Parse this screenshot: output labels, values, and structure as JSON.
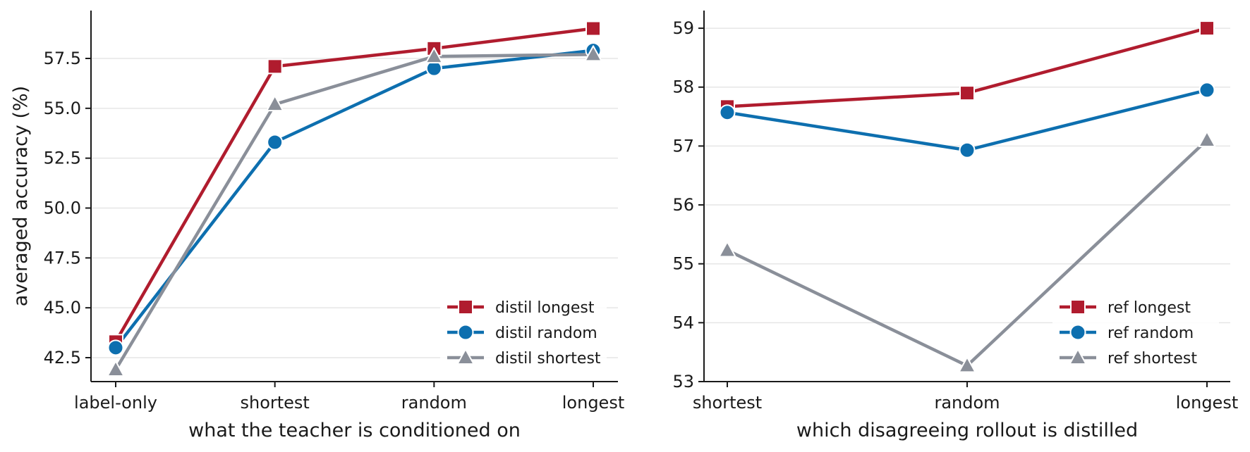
{
  "colors": {
    "red": "#b01c2e",
    "blue": "#0d6faf",
    "gray": "#8a8f99",
    "grid": "#e6e6e6",
    "axis": "#1a1a1a"
  },
  "chart_data": [
    {
      "type": "line",
      "xlabel": "what the teacher is conditioned on",
      "ylabel": "averaged accuracy (%)",
      "categories": [
        "label-only",
        "shortest",
        "random",
        "longest"
      ],
      "ylim": [
        41.3,
        59.9
      ],
      "yticks": [
        42.5,
        45.0,
        47.5,
        50.0,
        52.5,
        55.0,
        57.5
      ],
      "ytick_labels": [
        "42.5",
        "45.0",
        "47.5",
        "50.0",
        "52.5",
        "55.0",
        "57.5"
      ],
      "grid": "horizontal",
      "legend_position": "bottom-right",
      "series": [
        {
          "name": "distil longest",
          "color": "red",
          "marker": "square",
          "values": [
            43.3,
            57.1,
            58.0,
            59.0
          ]
        },
        {
          "name": "distil random",
          "color": "blue",
          "marker": "circle",
          "values": [
            43.0,
            53.3,
            57.0,
            57.9
          ]
        },
        {
          "name": "distil shortest",
          "color": "gray",
          "marker": "triangle",
          "values": [
            41.9,
            55.2,
            57.6,
            57.7
          ]
        }
      ]
    },
    {
      "type": "line",
      "xlabel": "which disagreeing rollout is distilled",
      "ylabel": "",
      "categories": [
        "shortest",
        "random",
        "longest"
      ],
      "ylim": [
        53.0,
        59.3
      ],
      "yticks": [
        53,
        54,
        55,
        56,
        57,
        58,
        59
      ],
      "ytick_labels": [
        "53",
        "54",
        "55",
        "56",
        "57",
        "58",
        "59"
      ],
      "grid": "horizontal",
      "legend_position": "bottom-right",
      "series": [
        {
          "name": "ref longest",
          "color": "red",
          "marker": "square",
          "values": [
            57.67,
            57.9,
            59.0
          ]
        },
        {
          "name": "ref random",
          "color": "blue",
          "marker": "circle",
          "values": [
            57.57,
            56.93,
            57.95
          ]
        },
        {
          "name": "ref shortest",
          "color": "gray",
          "marker": "triangle",
          "values": [
            55.23,
            53.27,
            57.1
          ]
        }
      ]
    }
  ]
}
